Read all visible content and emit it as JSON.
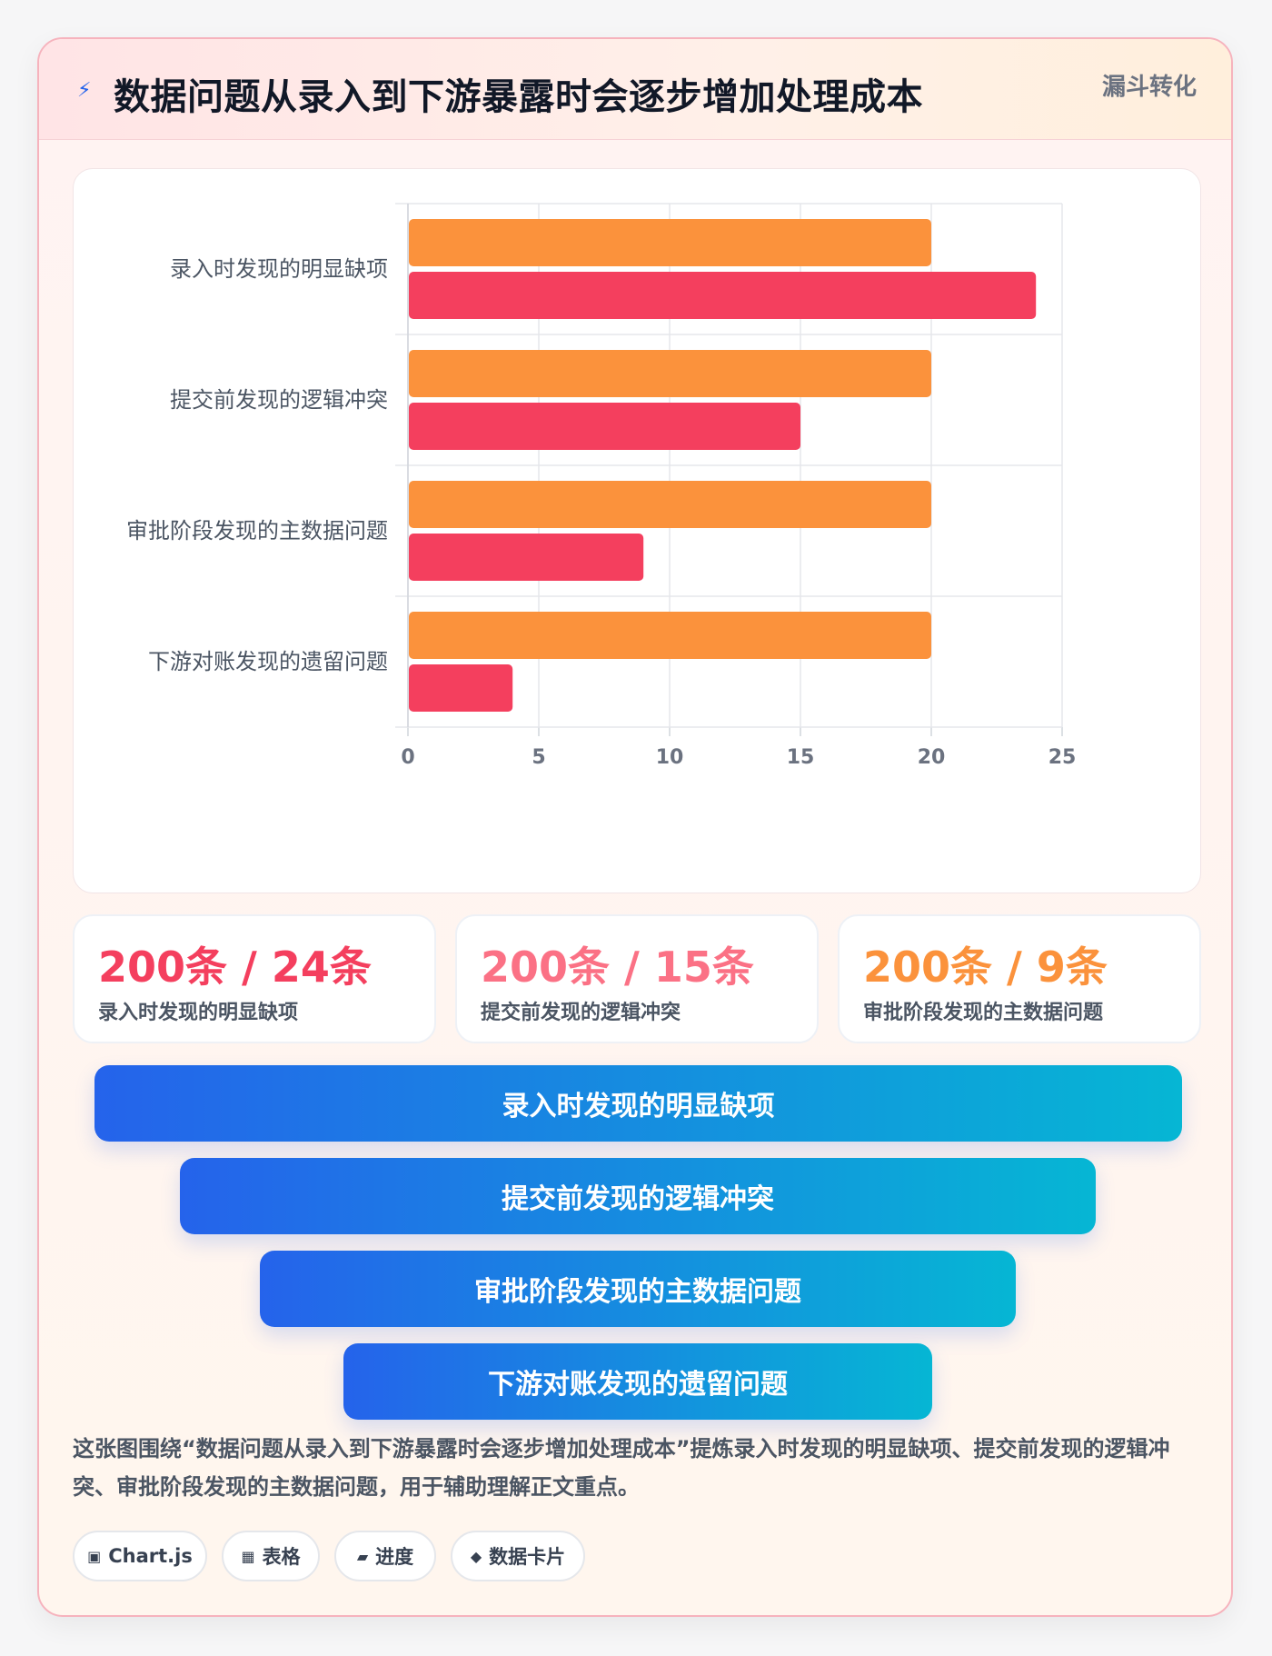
{
  "header": {
    "icon": "lightning-icon",
    "title": "数据问题从录入到下游暴露时会逐步增加处理成本",
    "tag": "漏斗转化"
  },
  "chart_data": {
    "type": "bar",
    "orientation": "horizontal",
    "categories": [
      "录入时发现的明显缺项",
      "提交前发现的逻辑冲突",
      "审批阶段发现的主数据问题",
      "下游对账发现的遗留问题"
    ],
    "series": [
      {
        "values": [
          20,
          20,
          20,
          20
        ],
        "color": "#fb923c"
      },
      {
        "values": [
          24,
          15,
          9,
          4
        ],
        "color": "#f43f5e"
      }
    ],
    "xlim": [
      0,
      25
    ],
    "xticks": [
      0,
      5,
      10,
      15,
      20,
      25
    ],
    "grid": true,
    "legend": "none",
    "title": "",
    "xlabel": "",
    "ylabel": ""
  },
  "stats": [
    {
      "value": "200条 / 24条",
      "label": "录入时发现的明显缺项",
      "color": "#f43f5e"
    },
    {
      "value": "200条 / 15条",
      "label": "提交前发现的逻辑冲突",
      "color": "#fb7185"
    },
    {
      "value": "200条 / 9条",
      "label": "审批阶段发现的主数据问题",
      "color": "#fb923c"
    }
  ],
  "funnel": [
    {
      "label": "录入时发现的明显缺项"
    },
    {
      "label": "提交前发现的逻辑冲突"
    },
    {
      "label": "审批阶段发现的主数据问题"
    },
    {
      "label": "下游对账发现的遗留问题"
    }
  ],
  "description": "这张图围绕“数据问题从录入到下游暴露时会逐步增加处理成本”提炼录入时发现的明显缺项、提交前发现的逻辑冲突、审批阶段发现的主数据问题，用于辅助理解正文重点。",
  "pills": [
    {
      "icon": "▣",
      "icon_name": "chip-icon",
      "label": "Chart.js"
    },
    {
      "icon": "▦",
      "icon_name": "table-icon",
      "label": "表格"
    },
    {
      "icon": "▰",
      "icon_name": "progress-icon",
      "label": "进度"
    },
    {
      "icon": "◆",
      "icon_name": "diamond-icon",
      "label": "数据卡片"
    }
  ]
}
